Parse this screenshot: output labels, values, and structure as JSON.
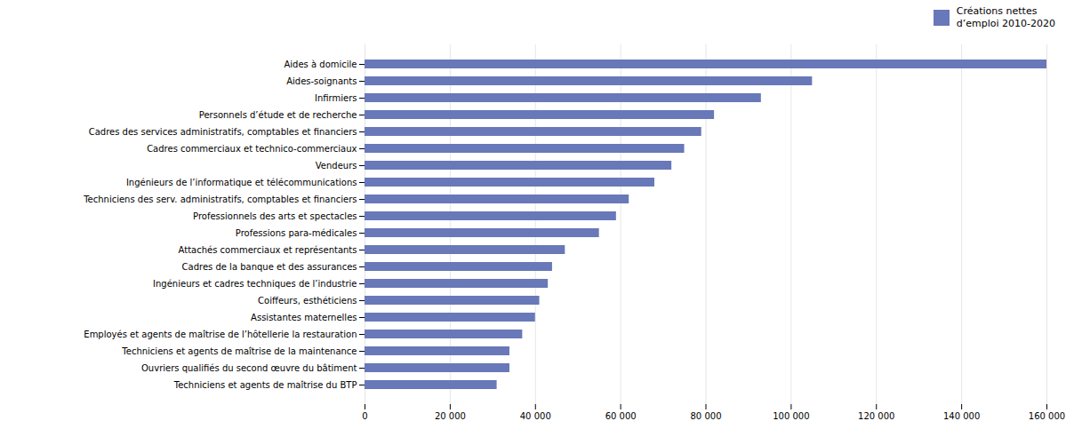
{
  "chart_data": {
    "type": "bar",
    "orientation": "horizontal",
    "categories": [
      "Aides à domicile",
      "Aides-soignants",
      "Infirmiers",
      "Personnels d’étude et de recherche",
      "Cadres des services administratifs, comptables et financiers",
      "Cadres commerciaux et technico-commerciaux",
      "Vendeurs",
      "Ingénieurs de l’informatique et télécommunications",
      "Techniciens des serv. administratifs, comptables et financiers",
      "Professionnels des arts et spectacles",
      "Professions para-médicales",
      "Attachés commerciaux et représentants",
      "Cadres de la banque et des assurances",
      "Ingénieurs et cadres techniques de l’industrie",
      "Coiffeurs, esthéticiens",
      "Assistantes maternelles",
      "Employés et agents de maîtrise de l’hôtellerie la restauration",
      "Techniciens et agents de maîtrise de la maintenance",
      "Ouvriers qualifiés du second œuvre du bâtiment",
      "Techniciens et agents de maîtrise du BTP"
    ],
    "series": [
      {
        "name": "Créations nettes\nd’emploi 2010-2020",
        "color": "#6878b8",
        "values": [
          160000,
          105000,
          93000,
          82000,
          79000,
          75000,
          72000,
          68000,
          62000,
          59000,
          55000,
          47000,
          44000,
          43000,
          41000,
          40000,
          37000,
          34000,
          34000,
          31000
        ]
      }
    ],
    "xlim": [
      0,
      160000
    ],
    "xticks": [
      0,
      {
        "value": 20000,
        "label": "20 000"
      },
      {
        "value": 40000,
        "label": "40 000"
      },
      {
        "value": 60000,
        "label": "60 000"
      },
      {
        "value": 80000,
        "label": "80 000"
      },
      {
        "value": 100000,
        "label": "100 000"
      },
      {
        "value": 120000,
        "label": "120 000"
      },
      {
        "value": 140000,
        "label": "140 000"
      },
      {
        "value": 160000,
        "label": "160 000"
      }
    ],
    "grid": true,
    "legend": "right"
  }
}
